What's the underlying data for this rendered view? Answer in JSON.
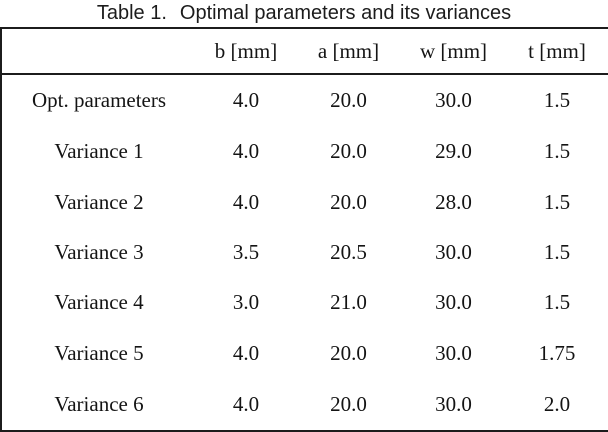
{
  "caption": {
    "label": "Table 1.",
    "text": "Optimal parameters and its variances"
  },
  "table": {
    "columns": {
      "label": "",
      "b": "b [mm]",
      "a": "a [mm]",
      "w": "w [mm]",
      "t": "t [mm]"
    },
    "rows": [
      {
        "label": "Opt. parameters",
        "values": [
          "4.0",
          "20.0",
          "30.0",
          "1.5"
        ]
      },
      {
        "label": "Variance 1",
        "values": [
          "4.0",
          "20.0",
          "29.0",
          "1.5"
        ]
      },
      {
        "label": "Variance 2",
        "values": [
          "4.0",
          "20.0",
          "28.0",
          "1.5"
        ]
      },
      {
        "label": "Variance 3",
        "values": [
          "3.5",
          "20.5",
          "30.0",
          "1.5"
        ]
      },
      {
        "label": "Variance 4",
        "values": [
          "3.0",
          "21.0",
          "30.0",
          "1.5"
        ]
      },
      {
        "label": "Variance 5",
        "values": [
          "4.0",
          "20.0",
          "30.0",
          "1.75"
        ]
      },
      {
        "label": "Variance 6",
        "values": [
          "4.0",
          "20.0",
          "30.0",
          "2.0"
        ]
      }
    ]
  }
}
